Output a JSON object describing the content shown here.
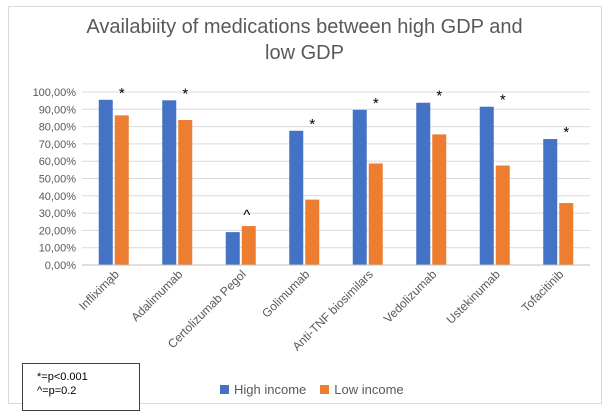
{
  "chart_data": {
    "type": "bar",
    "title": "Availabiity of medications between high GDP and low GDP",
    "title_lines": [
      "Availabiity of medications between high GDP and",
      "low GDP"
    ],
    "categories": [
      "Inflixima̧b",
      "Adalimumab",
      "Certolizumab Pegol",
      "Golimumab",
      "Anti-TNF biosimilars",
      "Vedolizumab",
      "Ustekinumab",
      "Tofacitinib"
    ],
    "series": [
      {
        "name": "High income",
        "color": "#4472C4",
        "values": [
          95.5,
          95.2,
          19.0,
          77.6,
          89.7,
          93.8,
          91.5,
          72.8
        ]
      },
      {
        "name": "Low income",
        "color": "#ED7D31",
        "values": [
          86.5,
          83.8,
          22.5,
          37.8,
          58.7,
          75.5,
          57.5,
          35.8
        ]
      }
    ],
    "annotations": [
      "*",
      "*",
      "^",
      "*",
      "*",
      "*",
      "*",
      "*"
    ],
    "ylim": [
      0,
      100
    ],
    "yticks": [
      "0,00%",
      "10,00%",
      "20,00%",
      "30,00%",
      "40,00%",
      "50,00%",
      "60,00%",
      "70,00%",
      "80,00%",
      "90,00%",
      "100,00%"
    ],
    "grid": true,
    "legend": "bottom",
    "notes": [
      "*=p<0.001",
      "^=p=0.2"
    ]
  }
}
